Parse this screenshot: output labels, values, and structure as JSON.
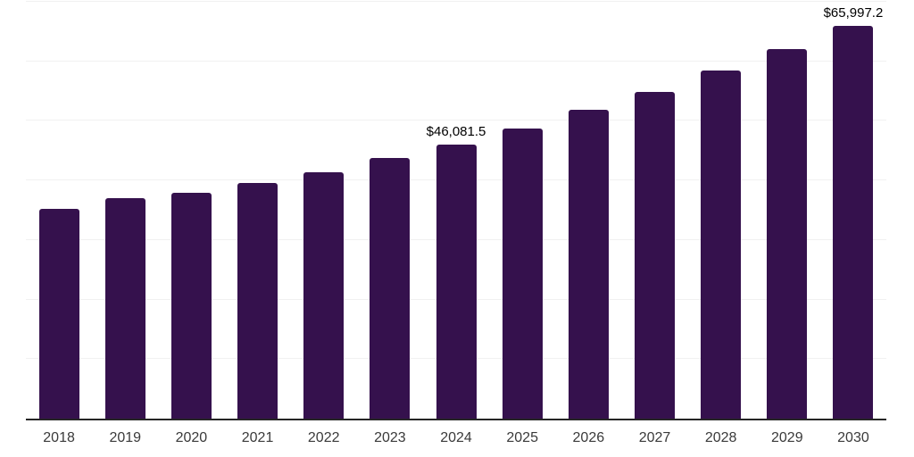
{
  "chart_data": {
    "type": "bar",
    "title": "",
    "xlabel": "",
    "ylabel": "",
    "categories": [
      "2018",
      "2019",
      "2020",
      "2021",
      "2022",
      "2023",
      "2024",
      "2025",
      "2026",
      "2027",
      "2028",
      "2029",
      "2030"
    ],
    "values": [
      35200,
      37000,
      37900,
      39600,
      41400,
      43800,
      46081.5,
      48700,
      51800,
      54900,
      58400,
      62000,
      65997.2
    ],
    "data_labels": [
      "",
      "",
      "",
      "",
      "",
      "",
      "$46,081.5",
      "",
      "",
      "",
      "",
      "",
      "$65,997.2"
    ],
    "ylim": [
      0,
      70000
    ],
    "gridline_interval": 10000,
    "grid": "horizontal-only",
    "legend_position": "none",
    "bar_color": "#35114d",
    "axis_line_color": "#262626",
    "gridline_color": "#f1f1f1",
    "value_label_color": "#000000",
    "tick_label_color": "#3a3a3a"
  }
}
